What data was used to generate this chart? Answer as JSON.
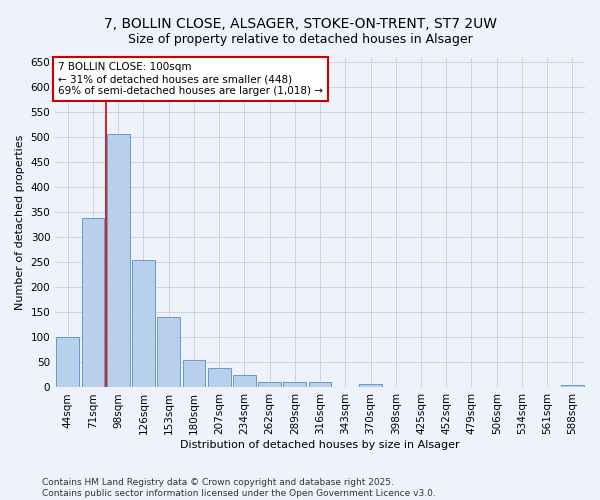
{
  "title1": "7, BOLLIN CLOSE, ALSAGER, STOKE-ON-TRENT, ST7 2UW",
  "title2": "Size of property relative to detached houses in Alsager",
  "xlabel": "Distribution of detached houses by size in Alsager",
  "ylabel": "Number of detached properties",
  "categories": [
    "44sqm",
    "71sqm",
    "98sqm",
    "126sqm",
    "153sqm",
    "180sqm",
    "207sqm",
    "234sqm",
    "262sqm",
    "289sqm",
    "316sqm",
    "343sqm",
    "370sqm",
    "398sqm",
    "425sqm",
    "452sqm",
    "479sqm",
    "506sqm",
    "534sqm",
    "561sqm",
    "588sqm"
  ],
  "values": [
    100,
    338,
    507,
    255,
    141,
    54,
    38,
    24,
    10,
    10,
    10,
    0,
    7,
    0,
    0,
    0,
    0,
    0,
    0,
    0,
    5
  ],
  "bar_color": "#b8d0eb",
  "bar_edge_color": "#6699cc",
  "highlight_line_bar_idx": 2,
  "annotation_line1": "7 BOLLIN CLOSE: 100sqm",
  "annotation_line2": "← 31% of detached houses are smaller (448)",
  "annotation_line3": "69% of semi-detached houses are larger (1,018) →",
  "annotation_box_color": "#ffffff",
  "annotation_box_edge_color": "#cc0000",
  "vline_color": "#cc0000",
  "ylim": [
    0,
    660
  ],
  "yticks": [
    0,
    50,
    100,
    150,
    200,
    250,
    300,
    350,
    400,
    450,
    500,
    550,
    600,
    650
  ],
  "footer_text": "Contains HM Land Registry data © Crown copyright and database right 2025.\nContains public sector information licensed under the Open Government Licence v3.0.",
  "bg_color": "#eef2fa",
  "grid_color": "#c5cfe0",
  "title1_fontsize": 10,
  "title2_fontsize": 9,
  "axis_label_fontsize": 8,
  "tick_fontsize": 7.5,
  "annotation_fontsize": 7.5,
  "footer_fontsize": 6.5
}
